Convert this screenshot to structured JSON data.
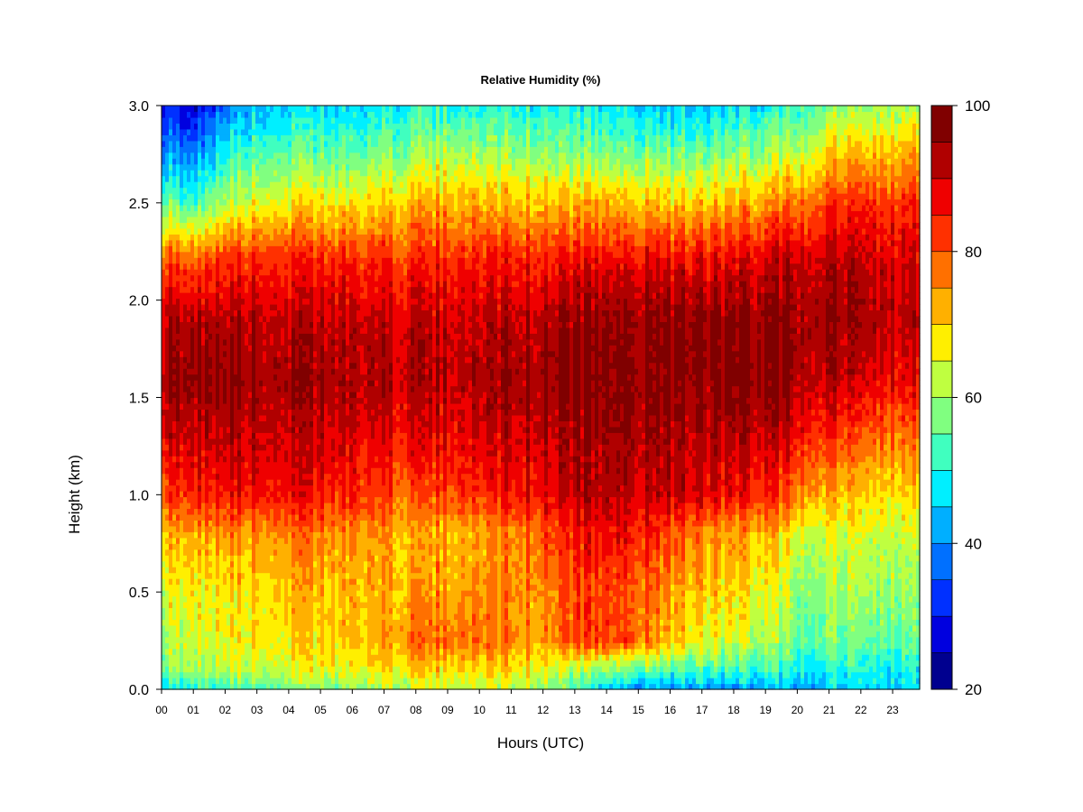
{
  "chart_data": {
    "type": "heatmap",
    "title": "Relative Humidity (%)",
    "xlabel": "Hours (UTC)",
    "ylabel": "Height (km)",
    "xlim": [
      0,
      23.85
    ],
    "ylim": [
      0,
      3.0
    ],
    "x_ticks": [
      "00",
      "01",
      "02",
      "03",
      "04",
      "05",
      "06",
      "07",
      "08",
      "09",
      "10",
      "11",
      "12",
      "13",
      "14",
      "15",
      "16",
      "17",
      "18",
      "19",
      "20",
      "21",
      "22",
      "23"
    ],
    "y_ticks": [
      "0.0",
      "0.5",
      "1.0",
      "1.5",
      "2.0",
      "2.5",
      "3.0"
    ],
    "y_tick_values": [
      0.0,
      0.5,
      1.0,
      1.5,
      2.0,
      2.5,
      3.0
    ],
    "colorbar": {
      "range": [
        20,
        100
      ],
      "ticks": [
        "20",
        "40",
        "60",
        "80",
        "100"
      ],
      "tick_values": [
        20,
        40,
        60,
        80,
        100
      ],
      "levels": [
        20,
        25,
        30,
        35,
        40,
        45,
        50,
        55,
        60,
        65,
        70,
        75,
        80,
        85,
        90,
        95,
        100
      ],
      "colors": [
        "#00008F",
        "#0000DF",
        "#0030FF",
        "#0070FF",
        "#00AFFF",
        "#00EFFF",
        "#40FFBF",
        "#80FF80",
        "#BFFF40",
        "#FFEF00",
        "#FFB000",
        "#FF7000",
        "#FF3000",
        "#EF0000",
        "#B00000",
        "#800000"
      ]
    },
    "grid": false,
    "height_samples_km": [
      0.0,
      0.1,
      0.25,
      0.5,
      0.8,
      1.0,
      1.3,
      1.6,
      1.9,
      2.2,
      2.5,
      2.75,
      3.0
    ],
    "time_profiles": [
      {
        "hour": 0,
        "rh": [
          48,
          58,
          62,
          66,
          72,
          82,
          90,
          95,
          92,
          82,
          58,
          42,
          30
        ]
      },
      {
        "hour": 1,
        "rh": [
          50,
          60,
          64,
          67,
          73,
          84,
          91,
          96,
          92,
          80,
          52,
          38,
          26
        ]
      },
      {
        "hour": 2,
        "rh": [
          52,
          62,
          66,
          68,
          75,
          86,
          92,
          96,
          93,
          84,
          62,
          50,
          38
        ]
      },
      {
        "hour": 3,
        "rh": [
          54,
          64,
          68,
          70,
          76,
          87,
          92,
          95,
          93,
          85,
          66,
          54,
          44
        ]
      },
      {
        "hour": 4,
        "rh": [
          56,
          65,
          69,
          71,
          77,
          87,
          91,
          95,
          92,
          85,
          68,
          56,
          46
        ]
      },
      {
        "hour": 5,
        "rh": [
          57,
          66,
          70,
          72,
          77,
          86,
          91,
          95,
          92,
          85,
          68,
          56,
          46
        ]
      },
      {
        "hour": 6,
        "rh": [
          58,
          67,
          71,
          72,
          76,
          85,
          90,
          94,
          92,
          85,
          68,
          56,
          46
        ]
      },
      {
        "hour": 7,
        "rh": [
          60,
          68,
          73,
          72,
          74,
          82,
          88,
          93,
          91,
          84,
          70,
          58,
          48
        ]
      },
      {
        "hour": 8,
        "rh": [
          62,
          70,
          78,
          74,
          72,
          80,
          88,
          93,
          91,
          84,
          72,
          60,
          50
        ]
      },
      {
        "hour": 9,
        "rh": [
          63,
          70,
          78,
          75,
          73,
          82,
          89,
          93,
          91,
          85,
          74,
          62,
          52
        ]
      },
      {
        "hour": 10,
        "rh": [
          64,
          70,
          80,
          76,
          74,
          84,
          90,
          94,
          92,
          86,
          74,
          62,
          50
        ]
      },
      {
        "hour": 11,
        "rh": [
          63,
          68,
          76,
          76,
          76,
          86,
          91,
          95,
          92,
          86,
          72,
          60,
          50
        ]
      },
      {
        "hour": 12,
        "rh": [
          60,
          66,
          74,
          76,
          80,
          88,
          92,
          95,
          93,
          86,
          72,
          60,
          50
        ]
      },
      {
        "hour": 13,
        "rh": [
          52,
          60,
          82,
          80,
          85,
          91,
          94,
          97,
          95,
          87,
          72,
          58,
          48
        ]
      },
      {
        "hour": 14,
        "rh": [
          46,
          58,
          82,
          82,
          88,
          92,
          95,
          97,
          96,
          88,
          72,
          58,
          48
        ]
      },
      {
        "hour": 15,
        "rh": [
          42,
          56,
          80,
          80,
          86,
          92,
          95,
          97,
          96,
          88,
          72,
          58,
          46
        ]
      },
      {
        "hour": 16,
        "rh": [
          40,
          54,
          70,
          74,
          80,
          90,
          93,
          96,
          96,
          88,
          70,
          56,
          44
        ]
      },
      {
        "hour": 17,
        "rh": [
          40,
          52,
          66,
          70,
          76,
          88,
          92,
          96,
          96,
          87,
          70,
          56,
          44
        ]
      },
      {
        "hour": 18,
        "rh": [
          40,
          52,
          64,
          68,
          74,
          86,
          92,
          97,
          96,
          88,
          72,
          58,
          46
        ]
      },
      {
        "hour": 19,
        "rh": [
          42,
          52,
          62,
          66,
          72,
          84,
          92,
          97,
          97,
          90,
          74,
          60,
          48
        ]
      },
      {
        "hour": 20,
        "rh": [
          42,
          50,
          56,
          60,
          66,
          78,
          88,
          94,
          96,
          92,
          78,
          64,
          52
        ]
      },
      {
        "hour": 21,
        "rh": [
          44,
          50,
          56,
          60,
          64,
          72,
          84,
          92,
          95,
          92,
          82,
          70,
          58
        ]
      },
      {
        "hour": 22,
        "rh": [
          46,
          50,
          56,
          60,
          64,
          70,
          80,
          90,
          94,
          92,
          84,
          72,
          60
        ]
      },
      {
        "hour": 23.85,
        "rh": [
          46,
          50,
          56,
          60,
          64,
          70,
          78,
          88,
          92,
          90,
          84,
          74,
          62
        ]
      }
    ]
  }
}
